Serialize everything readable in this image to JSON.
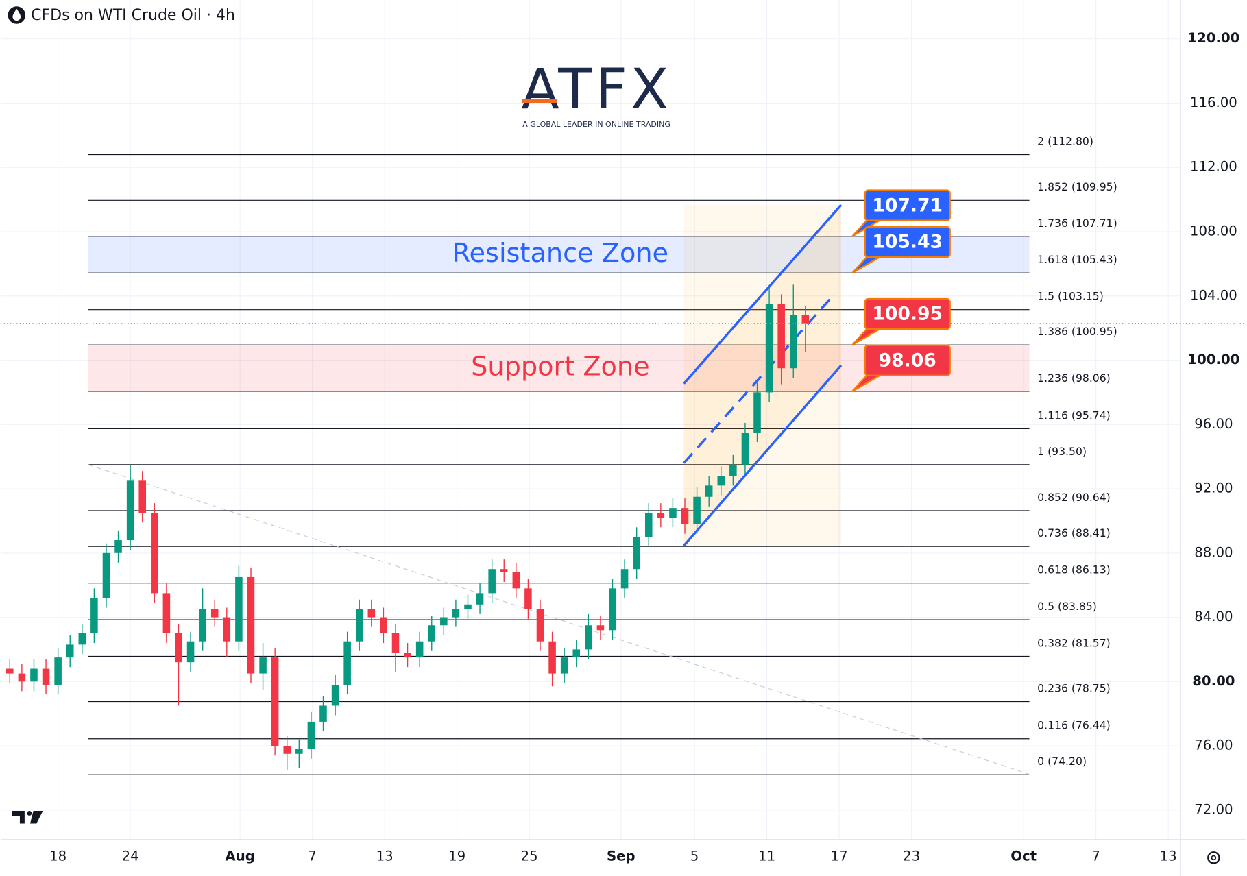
{
  "branding": {
    "name": "ATFX",
    "tagline": "A GLOBAL LEADER IN ONLINE TRADING"
  },
  "chart_data": {
    "type": "candlestick",
    "title": "CFDs on WTI Crude Oil · 4h",
    "x": [
      -4,
      -3,
      -2,
      -1,
      0,
      1,
      2,
      3,
      4,
      5,
      6,
      7,
      8,
      9,
      10,
      11,
      12,
      13,
      14,
      15,
      16,
      17,
      18,
      19,
      20,
      21,
      22,
      23,
      24,
      25,
      26,
      27,
      28,
      29,
      30,
      31,
      32,
      33,
      34,
      35,
      36,
      37,
      38,
      39,
      40,
      41,
      42,
      43,
      44,
      45,
      46,
      47,
      48,
      49,
      50,
      51,
      52,
      53,
      54,
      55,
      56,
      57,
      58,
      59,
      60,
      61,
      62
    ],
    "open": [
      80.8,
      80.5,
      80.0,
      80.8,
      79.8,
      81.5,
      82.3,
      83.0,
      85.2,
      88.0,
      88.8,
      92.5,
      90.5,
      85.5,
      83.0,
      81.2,
      82.5,
      84.5,
      84.0,
      82.5,
      86.5,
      80.5,
      81.5,
      76.0,
      75.5,
      75.8,
      77.5,
      78.5,
      79.8,
      82.5,
      84.5,
      84.0,
      83.0,
      81.8,
      81.5,
      82.5,
      83.5,
      84.0,
      84.5,
      84.8,
      85.5,
      87.0,
      86.8,
      85.8,
      84.5,
      82.5,
      80.5,
      81.5,
      82.0,
      83.5,
      83.2,
      85.8,
      87.0,
      89.0,
      90.5,
      90.2,
      90.8,
      89.8,
      91.5,
      92.2,
      92.8,
      93.5,
      95.5,
      98.0,
      103.5,
      99.5,
      102.8
    ],
    "high": [
      81.4,
      81.1,
      81.4,
      81.4,
      82.1,
      82.9,
      83.6,
      85.8,
      88.6,
      89.4,
      93.5,
      93.1,
      91.1,
      86.1,
      83.6,
      83.1,
      85.8,
      85.1,
      84.6,
      87.2,
      87.1,
      82.4,
      82.1,
      76.6,
      76.4,
      78.1,
      79.1,
      80.4,
      83.1,
      85.1,
      85.1,
      84.6,
      83.6,
      82.4,
      83.1,
      84.1,
      84.6,
      85.1,
      85.4,
      86.1,
      87.6,
      87.6,
      87.4,
      86.4,
      85.1,
      83.1,
      82.1,
      82.6,
      84.2,
      84.1,
      86.4,
      87.6,
      89.6,
      91.1,
      91.1,
      91.4,
      91.4,
      92.1,
      92.8,
      93.4,
      94.1,
      96.1,
      98.6,
      104.5,
      104.1,
      104.7,
      103.4
    ],
    "low": [
      79.9,
      79.4,
      79.4,
      79.2,
      79.2,
      80.9,
      81.7,
      82.4,
      84.6,
      87.4,
      88.2,
      89.9,
      84.9,
      82.4,
      78.5,
      80.6,
      81.9,
      83.4,
      81.5,
      81.9,
      79.9,
      79.5,
      75.4,
      74.5,
      74.6,
      75.2,
      76.9,
      77.9,
      79.2,
      81.9,
      83.4,
      82.4,
      80.6,
      80.9,
      80.9,
      81.9,
      82.9,
      83.4,
      83.9,
      84.2,
      84.9,
      86.2,
      85.2,
      83.9,
      81.9,
      79.7,
      79.9,
      80.9,
      81.4,
      82.6,
      82.6,
      85.2,
      86.4,
      88.4,
      89.6,
      89.6,
      89.2,
      89.2,
      90.9,
      91.6,
      92.2,
      92.9,
      94.9,
      97.4,
      98.5,
      98.9,
      100.5
    ],
    "close": [
      80.5,
      80.0,
      80.8,
      79.8,
      81.5,
      82.3,
      83.0,
      85.2,
      88.0,
      88.8,
      92.5,
      90.5,
      85.5,
      83.0,
      81.2,
      82.5,
      84.5,
      84.0,
      82.5,
      86.5,
      80.5,
      81.5,
      76.0,
      75.5,
      75.8,
      77.5,
      78.5,
      79.8,
      82.5,
      84.5,
      84.0,
      83.0,
      81.8,
      81.5,
      82.5,
      83.5,
      84.0,
      84.5,
      84.8,
      85.5,
      87.0,
      86.8,
      85.8,
      84.5,
      82.5,
      80.5,
      81.5,
      82.0,
      83.5,
      83.2,
      85.8,
      87.0,
      89.0,
      90.5,
      90.2,
      90.8,
      89.8,
      91.5,
      92.2,
      92.8,
      93.5,
      95.5,
      98.0,
      103.5,
      99.5,
      102.8,
      102.3
    ],
    "up_color": "#089981",
    "down_color": "#f23645",
    "xlim": [
      -4.75,
      93.1
    ],
    "ylim": [
      70.17,
      122.42
    ],
    "xticks": [
      {
        "value": 0,
        "label": "18"
      },
      {
        "value": 6,
        "label": "24"
      },
      {
        "value": 15.1,
        "label": "Aug"
      },
      {
        "value": 21.1,
        "label": "7"
      },
      {
        "value": 27.1,
        "label": "13"
      },
      {
        "value": 33.1,
        "label": "19"
      },
      {
        "value": 39.1,
        "label": "25"
      },
      {
        "value": 46.7,
        "label": "Sep"
      },
      {
        "value": 52.8,
        "label": "5"
      },
      {
        "value": 58.8,
        "label": "11"
      },
      {
        "value": 64.8,
        "label": "17"
      },
      {
        "value": 70.8,
        "label": "23"
      },
      {
        "value": 80.1,
        "label": "Oct"
      },
      {
        "value": 86.1,
        "label": "7"
      },
      {
        "value": 92.1,
        "label": "13"
      }
    ],
    "yticks": [
      {
        "value": 120,
        "label": "120.00"
      },
      {
        "value": 116,
        "label": "116.00"
      },
      {
        "value": 112,
        "label": "112.00"
      },
      {
        "value": 108,
        "label": "108.00"
      },
      {
        "value": 104,
        "label": "104.00"
      },
      {
        "value": 100,
        "label": "100.00"
      },
      {
        "value": 96,
        "label": "96.00"
      },
      {
        "value": 92,
        "label": "92.00"
      },
      {
        "value": 88,
        "label": "88.00"
      },
      {
        "value": 84,
        "label": "84.00"
      },
      {
        "value": 80,
        "label": "80.00"
      },
      {
        "value": 76,
        "label": "76.00"
      },
      {
        "value": 72,
        "label": "72.00"
      }
    ],
    "grid": true,
    "fib_levels": [
      {
        "value": 112.8,
        "label": "2 (112.80)"
      },
      {
        "value": 109.95,
        "label": "1.852 (109.95)"
      },
      {
        "value": 107.71,
        "label": "1.736 (107.71)"
      },
      {
        "value": 105.43,
        "label": "1.618 (105.43)"
      },
      {
        "value": 103.15,
        "label": "1.5 (103.15)"
      },
      {
        "value": 100.95,
        "label": "1.386 (100.95)"
      },
      {
        "value": 98.06,
        "label": "1.236 (98.06)"
      },
      {
        "value": 95.74,
        "label": "1.116 (95.74)"
      },
      {
        "value": 93.5,
        "label": "1 (93.50)"
      },
      {
        "value": 90.64,
        "label": "0.852 (90.64)"
      },
      {
        "value": 88.41,
        "label": "0.736 (88.41)"
      },
      {
        "value": 86.13,
        "label": "0.618 (86.13)"
      },
      {
        "value": 83.85,
        "label": "0.5 (83.85)"
      },
      {
        "value": 81.57,
        "label": "0.382 (81.57)"
      },
      {
        "value": 78.75,
        "label": "0.236 (78.75)"
      },
      {
        "value": 76.44,
        "label": "0.116 (76.44)"
      },
      {
        "value": 74.2,
        "label": "0 (74.20)"
      }
    ],
    "zones": [
      {
        "label": "Resistance Zone",
        "low": 105.43,
        "high": 107.71,
        "color": "#2962ff"
      },
      {
        "label": "Support Zone",
        "low": 98.06,
        "high": 100.95,
        "color": "#f23645"
      }
    ],
    "callouts": [
      {
        "value": 107.71,
        "color": "#2962ff"
      },
      {
        "value": 105.43,
        "color": "#2962ff"
      },
      {
        "value": 100.95,
        "color": "#f23645"
      },
      {
        "value": 98.06,
        "color": "#f23645"
      }
    ]
  }
}
